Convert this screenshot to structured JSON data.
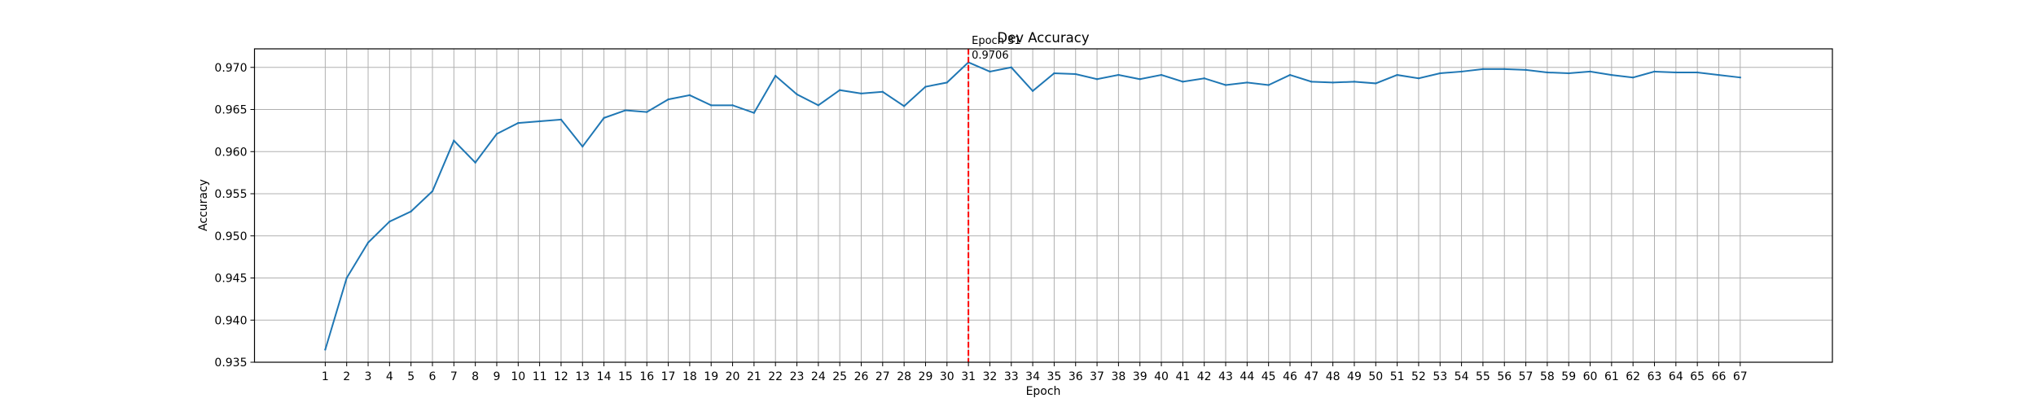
{
  "chart_data": {
    "type": "line",
    "title": "Dev Accuracy",
    "xlabel": "Epoch",
    "ylabel": "Accuracy",
    "xlim": [
      -2.3,
      71.3
    ],
    "ylim": [
      0.935,
      0.9722
    ],
    "yticks": [
      0.935,
      0.94,
      0.945,
      0.95,
      0.955,
      0.96,
      0.965,
      0.97
    ],
    "ytick_labels": [
      "0.935",
      "0.940",
      "0.945",
      "0.950",
      "0.955",
      "0.960",
      "0.965",
      "0.970"
    ],
    "grid": true,
    "line_color": "#1f77b4",
    "marker_color": "#ff0000",
    "series": [
      {
        "x": [
          1,
          2,
          3,
          4,
          5,
          6,
          7,
          8,
          9,
          10,
          11,
          12,
          13,
          14,
          15,
          16,
          17,
          18,
          19,
          20,
          21,
          22,
          23,
          24,
          25,
          26,
          27,
          28,
          29,
          30,
          31,
          32,
          33,
          34,
          35,
          36,
          37,
          38,
          39,
          40,
          41,
          42,
          43,
          44,
          45,
          46,
          47,
          48,
          49,
          50,
          51,
          52,
          53,
          54,
          55,
          56,
          57,
          58,
          59,
          60,
          61,
          62,
          63,
          64,
          65,
          66,
          67
        ],
        "values": [
          0.9365,
          0.945,
          0.9492,
          0.9517,
          0.9529,
          0.9553,
          0.9613,
          0.9587,
          0.9621,
          0.9634,
          0.9636,
          0.9638,
          0.9606,
          0.964,
          0.9649,
          0.9647,
          0.9662,
          0.9667,
          0.9655,
          0.9655,
          0.9646,
          0.969,
          0.9668,
          0.9655,
          0.9673,
          0.9669,
          0.9671,
          0.9654,
          0.9677,
          0.9682,
          0.9706,
          0.9695,
          0.97,
          0.9672,
          0.9693,
          0.9692,
          0.9686,
          0.9691,
          0.9686,
          0.9691,
          0.9683,
          0.9687,
          0.9679,
          0.9682,
          0.9679,
          0.9691,
          0.9683,
          0.9682,
          0.9683,
          0.9681,
          0.9691,
          0.9687,
          0.9693,
          0.9695,
          0.9698,
          0.9698,
          0.9697,
          0.9694,
          0.9693,
          0.9695,
          0.9691,
          0.9688,
          0.9695,
          0.9694,
          0.9694,
          0.9691,
          0.9688
        ]
      }
    ],
    "annotation": {
      "x": 31,
      "line1": "Epoch 31",
      "line2": "0.9706"
    }
  }
}
